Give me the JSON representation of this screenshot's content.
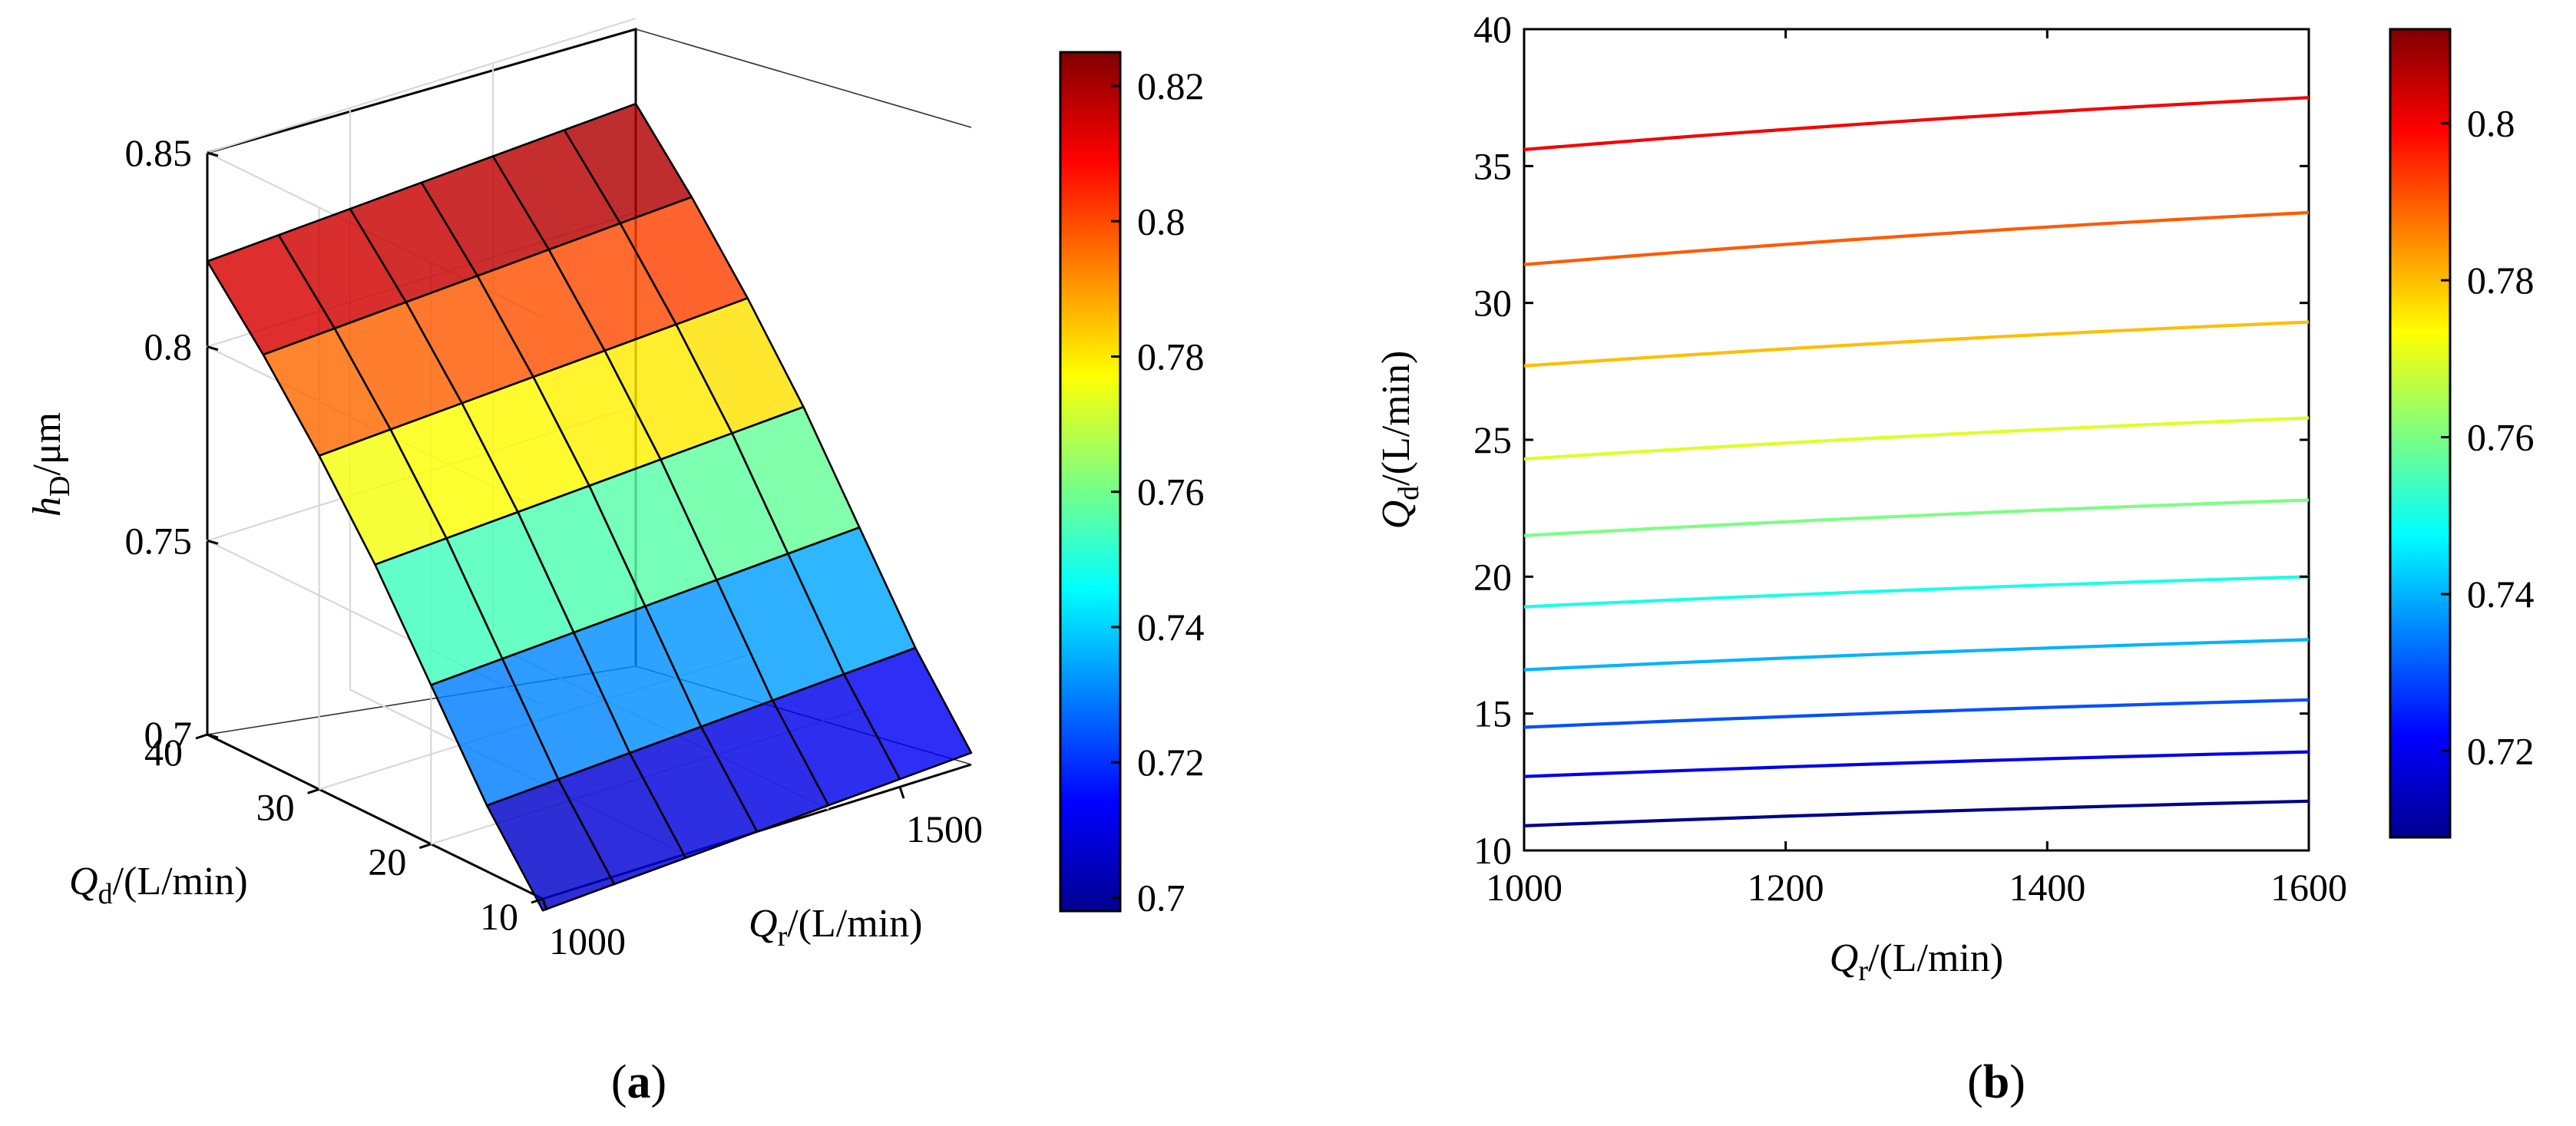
{
  "chart_data": [
    {
      "type": "surface3d",
      "panel": "(a)",
      "panel_letter": "a",
      "xlabel": {
        "symbol": "Q",
        "subscript": "r",
        "unit": "/(L/min)"
      },
      "ylabel": {
        "symbol": "Q",
        "subscript": "d",
        "unit": "/(L/min)"
      },
      "zlabel": {
        "symbol": "h",
        "subscript": "D",
        "unit": "/μm"
      },
      "x_range": [
        1000,
        1600
      ],
      "y_range": [
        10,
        40
      ],
      "z_range": [
        0.7,
        0.85
      ],
      "x_ticks": [
        "1000",
        "1500"
      ],
      "y_ticks": [
        "10",
        "20",
        "30",
        "40"
      ],
      "z_ticks": [
        "0.7",
        "0.75",
        "0.8",
        "0.85"
      ],
      "x_grid": [
        1000,
        1100,
        1200,
        1300,
        1400,
        1500,
        1600
      ],
      "y_grid": [
        10,
        15,
        20,
        25,
        30,
        35,
        40
      ],
      "z_values": [
        [
          0.697,
          0.698,
          0.699,
          0.7,
          0.701,
          0.702,
          0.703
        ],
        [
          0.717,
          0.718,
          0.719,
          0.72,
          0.721,
          0.722,
          0.723
        ],
        [
          0.741,
          0.742,
          0.743,
          0.744,
          0.745,
          0.746,
          0.747
        ],
        [
          0.765,
          0.766,
          0.767,
          0.768,
          0.769,
          0.77,
          0.771
        ],
        [
          0.786,
          0.787,
          0.788,
          0.789,
          0.79,
          0.791,
          0.792
        ],
        [
          0.805,
          0.806,
          0.807,
          0.808,
          0.809,
          0.81,
          0.811
        ],
        [
          0.822,
          0.823,
          0.824,
          0.825,
          0.826,
          0.827,
          0.828
        ]
      ],
      "colorbar": {
        "range": [
          0.698,
          0.825
        ],
        "ticks": [
          "0.7",
          "0.72",
          "0.74",
          "0.76",
          "0.78",
          "0.8",
          "0.82"
        ],
        "colormap": "jet"
      }
    },
    {
      "type": "contour",
      "panel": "(b)",
      "panel_letter": "b",
      "xlabel": {
        "symbol": "Q",
        "subscript": "r",
        "unit": "/(L/min)"
      },
      "ylabel": {
        "symbol": "Q",
        "subscript": "d",
        "unit": "/(L/min)"
      },
      "x_range": [
        1000,
        1600
      ],
      "y_range": [
        10,
        40
      ],
      "x_ticks": [
        "1000",
        "1200",
        "1400",
        "1600"
      ],
      "y_ticks": [
        "10",
        "15",
        "20",
        "25",
        "30",
        "35",
        "40"
      ],
      "series": [
        {
          "level": 0.71,
          "x": [
            1000,
            1600
          ],
          "y": [
            10.9,
            11.8
          ]
        },
        {
          "level": 0.72,
          "x": [
            1000,
            1600
          ],
          "y": [
            12.7,
            13.6
          ]
        },
        {
          "level": 0.73,
          "x": [
            1000,
            1600
          ],
          "y": [
            14.5,
            15.5
          ]
        },
        {
          "level": 0.74,
          "x": [
            1000,
            1600
          ],
          "y": [
            16.6,
            17.7
          ]
        },
        {
          "level": 0.75,
          "x": [
            1000,
            1600
          ],
          "y": [
            18.9,
            20.0
          ]
        },
        {
          "level": 0.76,
          "x": [
            1000,
            1600
          ],
          "y": [
            21.5,
            22.8
          ]
        },
        {
          "level": 0.77,
          "x": [
            1000,
            1600
          ],
          "y": [
            24.3,
            25.8
          ]
        },
        {
          "level": 0.78,
          "x": [
            1000,
            1600
          ],
          "y": [
            27.7,
            29.3
          ]
        },
        {
          "level": 0.79,
          "x": [
            1000,
            1600
          ],
          "y": [
            31.4,
            33.3
          ]
        },
        {
          "level": 0.8,
          "x": [
            1000,
            1600
          ],
          "y": [
            35.6,
            37.5
          ]
        }
      ],
      "colorbar": {
        "range": [
          0.709,
          0.812
        ],
        "ticks": [
          "0.72",
          "0.74",
          "0.76",
          "0.78",
          "0.8"
        ],
        "colormap": "jet"
      }
    }
  ]
}
